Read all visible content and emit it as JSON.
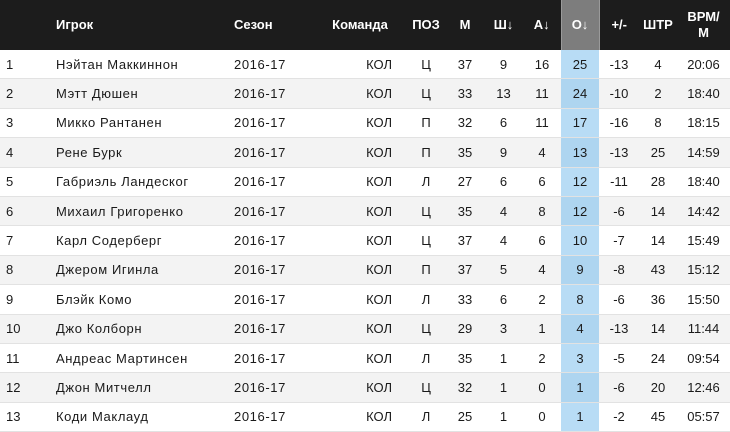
{
  "headers": {
    "rank": "",
    "player": "Игрок",
    "season": "Сезон",
    "team": "Команда",
    "pos": "ПОЗ",
    "gp": "М",
    "goals": "Ш↓",
    "assists": "А↓",
    "points": "О↓",
    "plusminus": "+/-",
    "pim": "ШТР",
    "toi_line1": "ВРМ/",
    "toi_line2": "М"
  },
  "sorted_column": "points",
  "colors": {
    "header_bg": "#1c1c1c",
    "sorted_header_bg": "#7d7d7d",
    "sorted_cell_bg": "#b8dcf5",
    "row_alt_bg": "#f3f3f3"
  },
  "rows": [
    {
      "rank": "1",
      "player": "Нэйтан Маккиннон",
      "season": "2016-17",
      "team": "КОЛ",
      "pos": "Ц",
      "gp": "37",
      "goals": "9",
      "assists": "16",
      "points": "25",
      "plusminus": "-13",
      "pim": "4",
      "toi": "20:06"
    },
    {
      "rank": "2",
      "player": "Мэтт Дюшен",
      "season": "2016-17",
      "team": "КОЛ",
      "pos": "Ц",
      "gp": "33",
      "goals": "13",
      "assists": "11",
      "points": "24",
      "plusminus": "-10",
      "pim": "2",
      "toi": "18:40"
    },
    {
      "rank": "3",
      "player": "Микко Рантанен",
      "season": "2016-17",
      "team": "КОЛ",
      "pos": "П",
      "gp": "32",
      "goals": "6",
      "assists": "11",
      "points": "17",
      "plusminus": "-16",
      "pim": "8",
      "toi": "18:15"
    },
    {
      "rank": "4",
      "player": "Рене Бурк",
      "season": "2016-17",
      "team": "КОЛ",
      "pos": "П",
      "gp": "35",
      "goals": "9",
      "assists": "4",
      "points": "13",
      "plusminus": "-13",
      "pim": "25",
      "toi": "14:59"
    },
    {
      "rank": "5",
      "player": "Габриэль Ландеског",
      "season": "2016-17",
      "team": "КОЛ",
      "pos": "Л",
      "gp": "27",
      "goals": "6",
      "assists": "6",
      "points": "12",
      "plusminus": "-11",
      "pim": "28",
      "toi": "18:40"
    },
    {
      "rank": "6",
      "player": "Михаил Григоренко",
      "season": "2016-17",
      "team": "КОЛ",
      "pos": "Ц",
      "gp": "35",
      "goals": "4",
      "assists": "8",
      "points": "12",
      "plusminus": "-6",
      "pim": "14",
      "toi": "14:42"
    },
    {
      "rank": "7",
      "player": "Карл Содерберг",
      "season": "2016-17",
      "team": "КОЛ",
      "pos": "Ц",
      "gp": "37",
      "goals": "4",
      "assists": "6",
      "points": "10",
      "plusminus": "-7",
      "pim": "14",
      "toi": "15:49"
    },
    {
      "rank": "8",
      "player": "Джером Игинла",
      "season": "2016-17",
      "team": "КОЛ",
      "pos": "П",
      "gp": "37",
      "goals": "5",
      "assists": "4",
      "points": "9",
      "plusminus": "-8",
      "pim": "43",
      "toi": "15:12"
    },
    {
      "rank": "9",
      "player": "Блэйк Комо",
      "season": "2016-17",
      "team": "КОЛ",
      "pos": "Л",
      "gp": "33",
      "goals": "6",
      "assists": "2",
      "points": "8",
      "plusminus": "-6",
      "pim": "36",
      "toi": "15:50"
    },
    {
      "rank": "10",
      "player": "Джо Колборн",
      "season": "2016-17",
      "team": "КОЛ",
      "pos": "Ц",
      "gp": "29",
      "goals": "3",
      "assists": "1",
      "points": "4",
      "plusminus": "-13",
      "pim": "14",
      "toi": "11:44"
    },
    {
      "rank": "11",
      "player": "Андреас Мартинсен",
      "season": "2016-17",
      "team": "КОЛ",
      "pos": "Л",
      "gp": "35",
      "goals": "1",
      "assists": "2",
      "points": "3",
      "plusminus": "-5",
      "pim": "24",
      "toi": "09:54"
    },
    {
      "rank": "12",
      "player": "Джон Митчелл",
      "season": "2016-17",
      "team": "КОЛ",
      "pos": "Ц",
      "gp": "32",
      "goals": "1",
      "assists": "0",
      "points": "1",
      "plusminus": "-6",
      "pim": "20",
      "toi": "12:46"
    },
    {
      "rank": "13",
      "player": "Коди Маклауд",
      "season": "2016-17",
      "team": "КОЛ",
      "pos": "Л",
      "gp": "25",
      "goals": "1",
      "assists": "0",
      "points": "1",
      "plusminus": "-2",
      "pim": "45",
      "toi": "05:57"
    }
  ]
}
